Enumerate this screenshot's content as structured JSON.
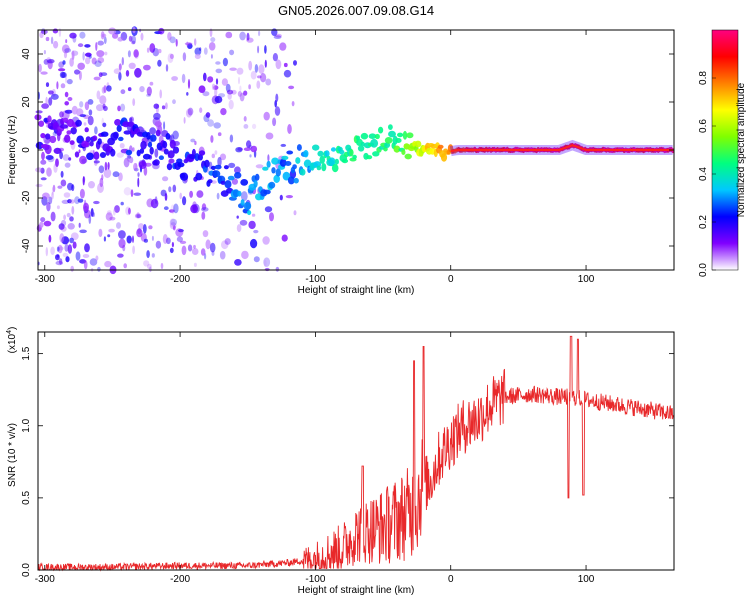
{
  "title": "GN05.2026.007.09.08.G14",
  "colorbar": {
    "label": "Normalized spectral amplitude",
    "ticks": [
      "0.0",
      "0.2",
      "0.4",
      "0.6",
      "0.8"
    ],
    "tick_values": [
      0.0,
      0.2,
      0.4,
      0.6,
      0.8
    ],
    "range": [
      0,
      1
    ],
    "colors": [
      "#ffffff",
      "#8000ff",
      "#0000ff",
      "#00c8ff",
      "#00ff80",
      "#80ff00",
      "#ffff00",
      "#ff8000",
      "#ff0000",
      "#ff0080"
    ]
  },
  "chart_data": [
    {
      "type": "heatmap",
      "name": "spectrogram",
      "xlabel": "Height of straight line (km)",
      "ylabel": "Frequency (Hz)",
      "xlim": [
        -305,
        165
      ],
      "ylim": [
        -50,
        50
      ],
      "xticks": [
        -300,
        -200,
        -100,
        0,
        100
      ],
      "xtick_labels": [
        "-300",
        "-200",
        "-100",
        "0",
        "100"
      ],
      "yticks": [
        -40,
        -20,
        0,
        20,
        40
      ],
      "ytick_labels": [
        "-40",
        "-20",
        "0",
        "20",
        "40"
      ],
      "ridge": {
        "x": [
          -305,
          -280,
          -260,
          -240,
          -220,
          -200,
          -180,
          -165,
          -150,
          -135,
          -120,
          -100,
          -80,
          -60,
          -45,
          -35,
          -25,
          -15,
          -5,
          5,
          20,
          50,
          80,
          90,
          100,
          165
        ],
        "freq": [
          8,
          5,
          4,
          6,
          2,
          -4,
          -8,
          -14,
          -20,
          -12,
          -7,
          -4,
          -2,
          2,
          5,
          3,
          0,
          1,
          -1,
          0,
          0,
          0,
          0,
          2,
          0,
          0
        ],
        "amplitude": [
          0.15,
          0.15,
          0.17,
          0.2,
          0.2,
          0.2,
          0.22,
          0.25,
          0.3,
          0.3,
          0.3,
          0.35,
          0.4,
          0.45,
          0.45,
          0.5,
          0.6,
          0.7,
          0.75,
          0.85,
          0.9,
          0.95,
          0.95,
          0.9,
          0.95,
          0.95
        ]
      },
      "noise_extent_x": [
        -305,
        -115
      ]
    },
    {
      "type": "line",
      "name": "snr",
      "xlabel": "Height of straight line (km)",
      "ylabel": "SNR (10 * v/v)",
      "scale_label": "(x10",
      "scale_exp": "4",
      "scale_close": ")",
      "xlim": [
        -305,
        165
      ],
      "ylim": [
        0,
        1.65
      ],
      "xticks": [
        -300,
        -200,
        -100,
        0,
        100
      ],
      "xtick_labels": [
        "-300",
        "-200",
        "-100",
        "0",
        "100"
      ],
      "yticks": [
        0,
        0.5,
        1.0,
        1.5
      ],
      "ytick_labels": [
        "0.0",
        "0.5",
        "1.0",
        "1.5"
      ],
      "color": "#e8282a",
      "envelope": {
        "x": [
          -305,
          -250,
          -200,
          -150,
          -120,
          -100,
          -90,
          -80,
          -70,
          -60,
          -50,
          -40,
          -30,
          -25,
          -20,
          -18,
          -15,
          -10,
          0,
          10,
          20,
          30,
          40,
          60,
          80,
          90,
          100,
          120,
          140,
          165
        ],
        "y": [
          0.02,
          0.02,
          0.03,
          0.03,
          0.05,
          0.08,
          0.12,
          0.15,
          0.25,
          0.28,
          0.3,
          0.35,
          0.4,
          0.45,
          0.65,
          0.6,
          0.62,
          0.75,
          0.9,
          1.0,
          1.05,
          1.15,
          1.2,
          1.22,
          1.2,
          1.2,
          1.18,
          1.15,
          1.12,
          1.08
        ]
      },
      "spikes": [
        {
          "x": -20,
          "y": 1.55
        },
        {
          "x": -27,
          "y": 1.45
        },
        {
          "x": -65,
          "y": 0.72
        },
        {
          "x": 87,
          "y": 0.5
        },
        {
          "x": 89,
          "y": 1.62
        },
        {
          "x": 94,
          "y": 1.6
        },
        {
          "x": 98,
          "y": 0.52
        }
      ]
    }
  ]
}
